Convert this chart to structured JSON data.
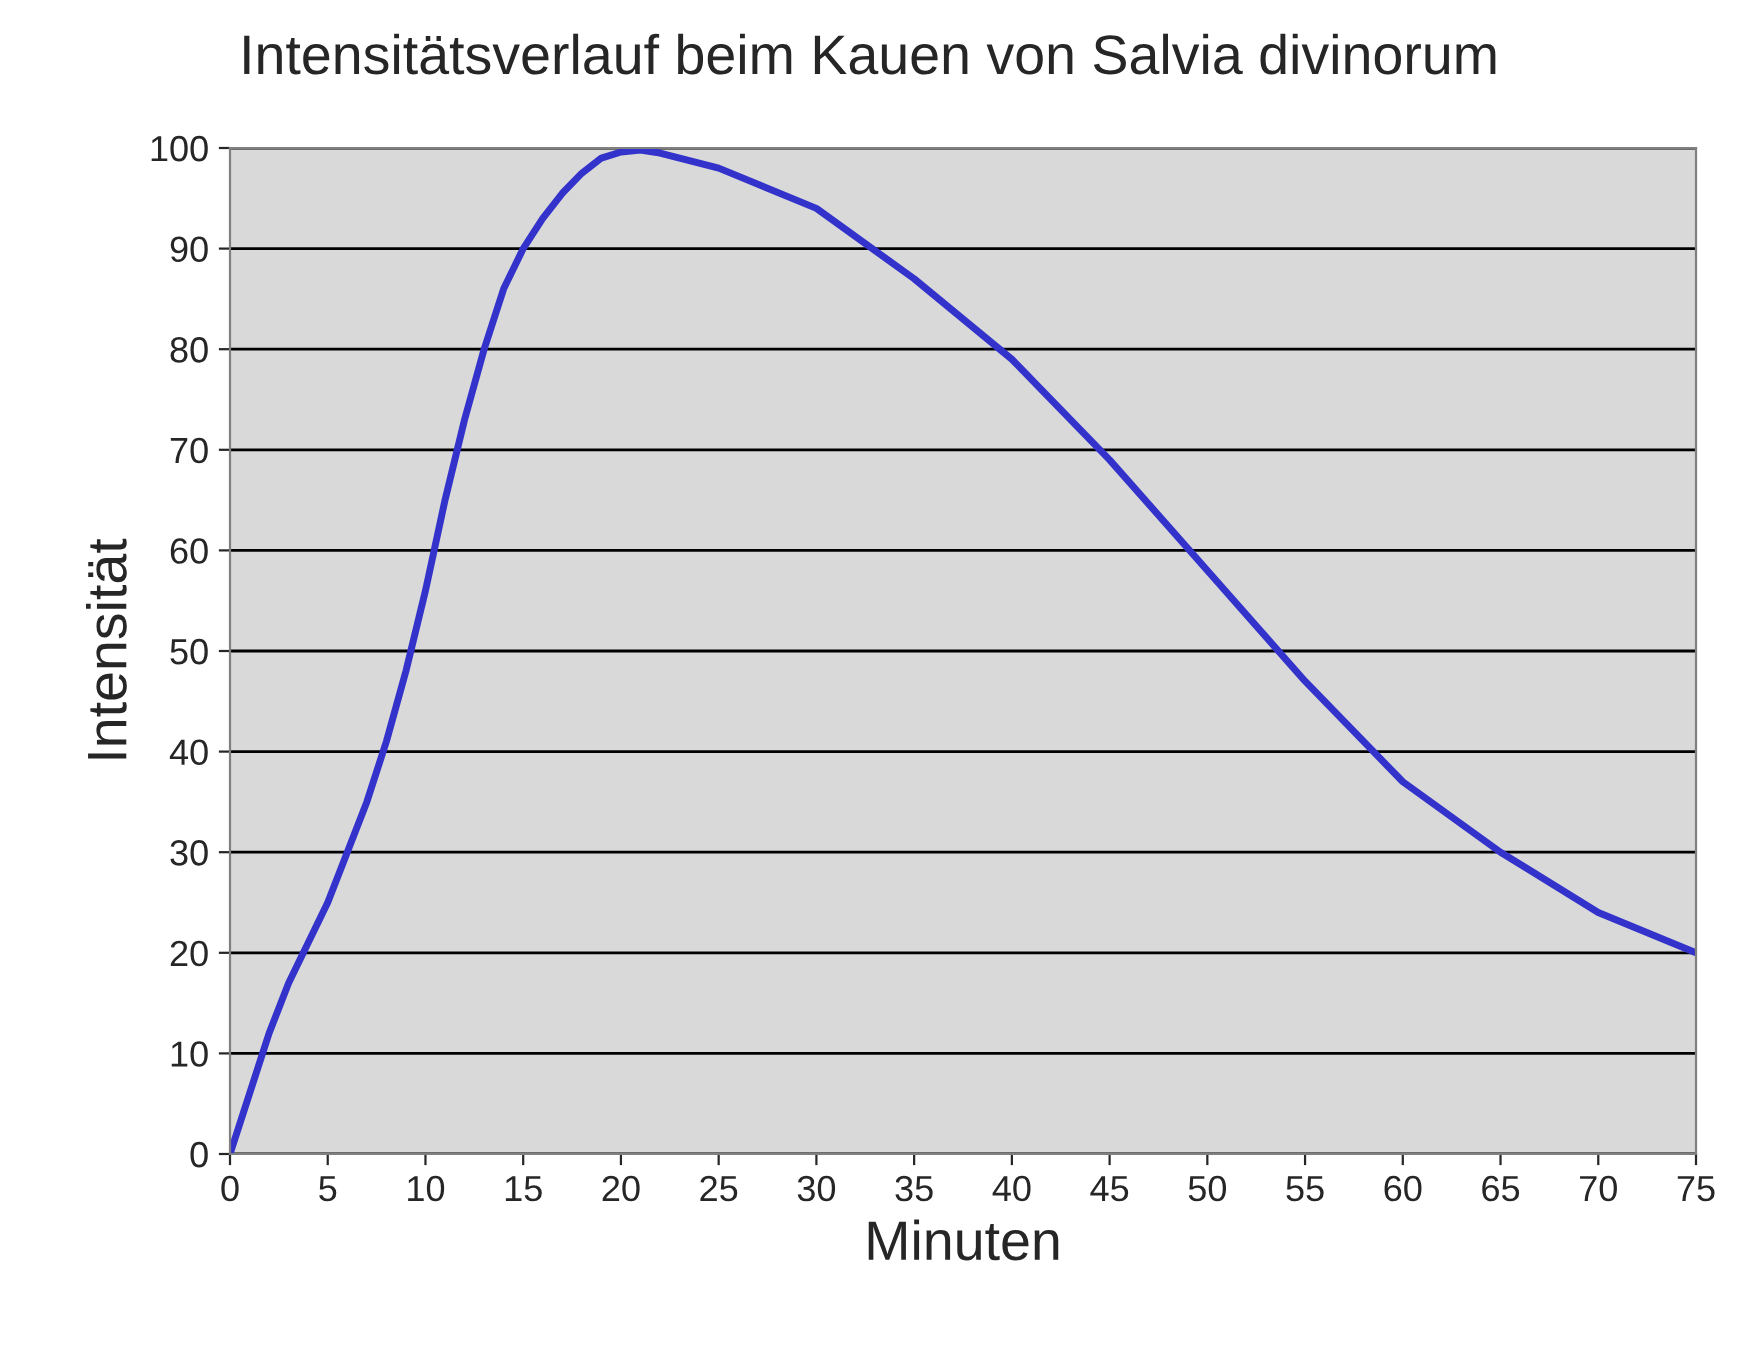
{
  "chart_data": {
    "type": "line",
    "title": "Intensitätsverlauf beim Kauen von Salvia divinorum",
    "xlabel": "Minuten",
    "ylabel": "Intensität",
    "x": [
      0,
      1,
      2,
      3,
      4,
      5,
      6,
      7,
      8,
      9,
      10,
      11,
      12,
      13,
      14,
      15,
      16,
      17,
      18,
      19,
      20,
      21,
      22,
      25,
      30,
      35,
      40,
      45,
      50,
      55,
      60,
      65,
      70,
      75
    ],
    "series": [
      {
        "color": "#3333cc",
        "values": [
          0,
          6,
          12,
          17,
          21,
          25,
          30,
          35,
          41,
          48,
          56,
          65,
          73,
          80,
          86,
          90,
          93,
          95.5,
          97.5,
          99,
          99.6,
          99.8,
          99.5,
          98,
          94,
          87,
          79,
          69,
          58,
          47,
          37,
          30,
          24,
          20
        ]
      }
    ],
    "xlim": [
      0,
      75
    ],
    "xticks": [
      0,
      5,
      10,
      15,
      20,
      25,
      30,
      35,
      40,
      45,
      50,
      55,
      60,
      65,
      70,
      75
    ],
    "ylim": [
      0,
      100
    ],
    "yticks": [
      0,
      10,
      20,
      30,
      40,
      50,
      60,
      70,
      80,
      90,
      100
    ],
    "grid": "y",
    "legend": false,
    "marker": "none",
    "line_style": "solid"
  }
}
